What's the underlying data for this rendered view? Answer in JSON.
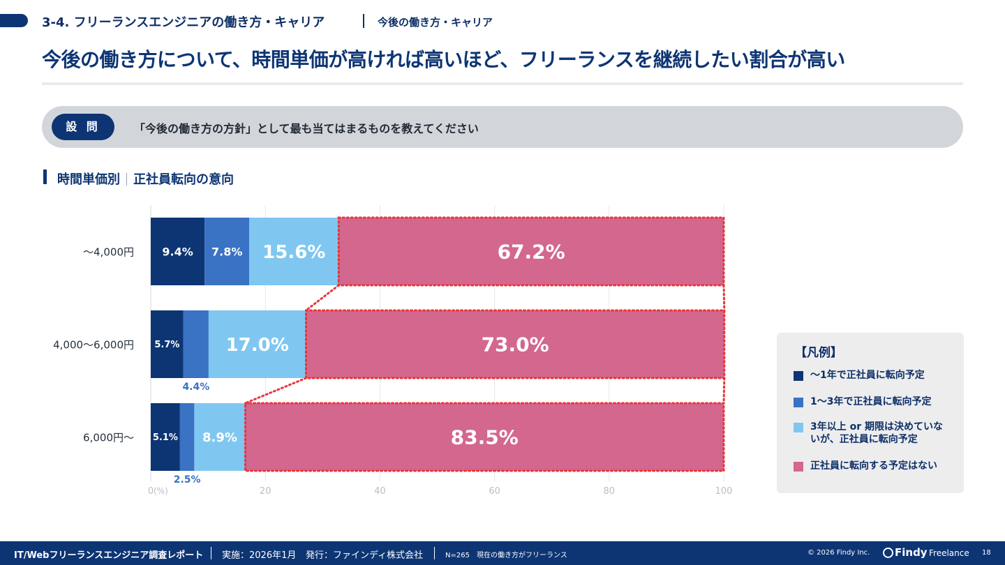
{
  "header": {
    "section_title": "3-4. フリーランスエンジニアの働き方・キャリア",
    "section_sub": "今後の働き方・キャリア",
    "headline": "今後の働き方について、時間単価が高ければ高いほど、フリーランスを継続したい割合が高い"
  },
  "question": {
    "badge": "設 問",
    "text": "「今後の働き方の方針」として最も当てはまるものを教えてください"
  },
  "subheading": {
    "left": "時間単価別",
    "right": "正社員転向の意向"
  },
  "colors": {
    "navy": "#0d3574",
    "blue": "#3a72c4",
    "light_blue": "#7fc7f0",
    "pink": "#d3678e",
    "highlight": "#e8353b"
  },
  "chart_data": {
    "type": "bar",
    "orientation": "horizontal",
    "stacked": true,
    "categories": [
      "～4,000円",
      "4,000～6,000円",
      "6,000円～"
    ],
    "series": [
      {
        "name": "～1年で正社員に転向予定",
        "color": "#0d3574",
        "values": [
          9.4,
          5.7,
          5.1
        ]
      },
      {
        "name": "1～3年で正社員に転向予定",
        "color": "#3a72c4",
        "values": [
          7.8,
          4.4,
          2.5
        ]
      },
      {
        "name": "3年以上 or 期限は決めていないが、正社員に転向予定",
        "color": "#7fc7f0",
        "values": [
          15.6,
          17.0,
          8.9
        ]
      },
      {
        "name": "正社員に転向する予定はない",
        "color": "#d3678e",
        "values": [
          67.2,
          73.0,
          83.5
        ]
      }
    ],
    "data_labels": [
      [
        "9.4%",
        "7.8%",
        "15.6%",
        "67.2%"
      ],
      [
        "5.7%",
        "4.4%",
        "17.0%",
        "73.0%"
      ],
      [
        "5.1%",
        "2.5%",
        "8.9%",
        "83.5%"
      ]
    ],
    "xlim": [
      0,
      100
    ],
    "xticks": [
      0,
      20,
      40,
      60,
      80,
      100
    ],
    "xunit_label": "(%)",
    "grid": true
  },
  "legend": {
    "title": "【凡例】",
    "items": [
      {
        "label": "～1年で正社員に転向予定",
        "color": "#0d3574"
      },
      {
        "label": "1～3年で正社員に転向予定",
        "color": "#3a72c4"
      },
      {
        "label": "3年以上 or 期限は決めていないが、正社員に転向予定",
        "color": "#7fc7f0"
      },
      {
        "label": "正社員に転向する予定はない",
        "color": "#d3678e"
      }
    ]
  },
  "footer": {
    "report_title": "IT/Webフリーランスエンジニア調査レポート",
    "conducted": "実施：2026年1月",
    "publisher": "発行：ファインディ株式会社",
    "sample": "N=265　現在の働き方がフリーランス",
    "copyright": "© 2026 Findy Inc.",
    "brand": "Findy",
    "brand_sub": "Freelance",
    "page_number": "18"
  }
}
